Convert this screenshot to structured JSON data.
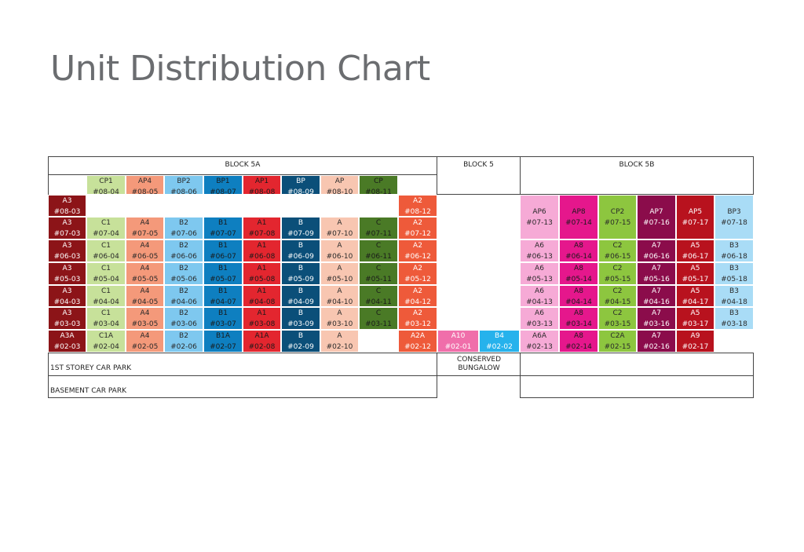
{
  "title": "Unit Distribution Chart",
  "blocks": {
    "a": "BLOCK 5A",
    "mid": "BLOCK 5",
    "b": "BLOCK 5B"
  },
  "labels": {
    "car1": "1ST STOREY CAR PARK",
    "car2": "BASEMENT CAR PARK",
    "bungalow": "CONSERVED BUNGALOW"
  },
  "colors": {
    "maroon": "#8c1418",
    "lgreen": "#c7e19a",
    "salmon": "#f4997a",
    "sky": "#7ec8ef",
    "blue": "#0e7fc0",
    "red": "#e3262f",
    "navy": "#0b4f79",
    "peach": "#f8c6b1",
    "dgreen": "#4a7a26",
    "orange": "#ee5a3a",
    "pink": "#f6aad6",
    "magenta": "#e5178c",
    "green": "#8dc63f",
    "plum": "#8b0c4b",
    "crimson": "#b8121e",
    "lblue": "#a9dcf6",
    "hotpink": "#f06eaa",
    "cyan": "#26b2ec"
  },
  "cells": [
    {
      "code": "CP1",
      "unit": "#08-04",
      "col": 1,
      "row": 0,
      "color": "lgreen"
    },
    {
      "code": "AP4",
      "unit": "#08-05",
      "col": 2,
      "row": 0,
      "color": "salmon"
    },
    {
      "code": "BP2",
      "unit": "#08-06",
      "col": 3,
      "row": 0,
      "color": "sky"
    },
    {
      "code": "BP1",
      "unit": "#08-07",
      "col": 4,
      "row": 0,
      "color": "blue"
    },
    {
      "code": "AP1",
      "unit": "#08-08",
      "col": 5,
      "row": 0,
      "color": "red"
    },
    {
      "code": "BP",
      "unit": "#08-09",
      "col": 6,
      "row": 0,
      "color": "navy"
    },
    {
      "code": "AP",
      "unit": "#08-10",
      "col": 7,
      "row": 0,
      "color": "peach"
    },
    {
      "code": "CP",
      "unit": "#08-11",
      "col": 8,
      "row": 0,
      "color": "dgreen"
    },
    {
      "code": "A3",
      "unit": "#08-03",
      "col": 0,
      "row": 1,
      "color": "maroon"
    },
    {
      "code": "A2",
      "unit": "#08-12",
      "col": 9,
      "row": 1,
      "color": "orange"
    },
    {
      "code": "A3",
      "unit": "#07-03",
      "col": 0,
      "row": 2,
      "color": "maroon"
    },
    {
      "code": "C1",
      "unit": "#07-04",
      "col": 1,
      "row": 2,
      "color": "lgreen"
    },
    {
      "code": "A4",
      "unit": "#07-05",
      "col": 2,
      "row": 2,
      "color": "salmon"
    },
    {
      "code": "B2",
      "unit": "#07-06",
      "col": 3,
      "row": 2,
      "color": "sky"
    },
    {
      "code": "B1",
      "unit": "#07-07",
      "col": 4,
      "row": 2,
      "color": "blue"
    },
    {
      "code": "A1",
      "unit": "#07-08",
      "col": 5,
      "row": 2,
      "color": "red"
    },
    {
      "code": "B",
      "unit": "#07-09",
      "col": 6,
      "row": 2,
      "color": "navy"
    },
    {
      "code": "A",
      "unit": "#07-10",
      "col": 7,
      "row": 2,
      "color": "peach"
    },
    {
      "code": "C",
      "unit": "#07-11",
      "col": 8,
      "row": 2,
      "color": "dgreen"
    },
    {
      "code": "A2",
      "unit": "#07-12",
      "col": 9,
      "row": 2,
      "color": "orange"
    },
    {
      "code": "A3",
      "unit": "#06-03",
      "col": 0,
      "row": 3,
      "color": "maroon"
    },
    {
      "code": "C1",
      "unit": "#06-04",
      "col": 1,
      "row": 3,
      "color": "lgreen"
    },
    {
      "code": "A4",
      "unit": "#06-05",
      "col": 2,
      "row": 3,
      "color": "salmon"
    },
    {
      "code": "B2",
      "unit": "#06-06",
      "col": 3,
      "row": 3,
      "color": "sky"
    },
    {
      "code": "B1",
      "unit": "#06-07",
      "col": 4,
      "row": 3,
      "color": "blue"
    },
    {
      "code": "A1",
      "unit": "#06-08",
      "col": 5,
      "row": 3,
      "color": "red"
    },
    {
      "code": "B",
      "unit": "#06-09",
      "col": 6,
      "row": 3,
      "color": "navy"
    },
    {
      "code": "A",
      "unit": "#06-10",
      "col": 7,
      "row": 3,
      "color": "peach"
    },
    {
      "code": "C",
      "unit": "#06-11",
      "col": 8,
      "row": 3,
      "color": "dgreen"
    },
    {
      "code": "A2",
      "unit": "#06-12",
      "col": 9,
      "row": 3,
      "color": "orange"
    },
    {
      "code": "A3",
      "unit": "#05-03",
      "col": 0,
      "row": 4,
      "color": "maroon"
    },
    {
      "code": "C1",
      "unit": "#05-04",
      "col": 1,
      "row": 4,
      "color": "lgreen"
    },
    {
      "code": "A4",
      "unit": "#05-05",
      "col": 2,
      "row": 4,
      "color": "salmon"
    },
    {
      "code": "B2",
      "unit": "#05-06",
      "col": 3,
      "row": 4,
      "color": "sky"
    },
    {
      "code": "B1",
      "unit": "#05-07",
      "col": 4,
      "row": 4,
      "color": "blue"
    },
    {
      "code": "A1",
      "unit": "#05-08",
      "col": 5,
      "row": 4,
      "color": "red"
    },
    {
      "code": "B",
      "unit": "#05-09",
      "col": 6,
      "row": 4,
      "color": "navy"
    },
    {
      "code": "A",
      "unit": "#05-10",
      "col": 7,
      "row": 4,
      "color": "peach"
    },
    {
      "code": "C",
      "unit": "#05-11",
      "col": 8,
      "row": 4,
      "color": "dgreen"
    },
    {
      "code": "A2",
      "unit": "#05-12",
      "col": 9,
      "row": 4,
      "color": "orange"
    },
    {
      "code": "A3",
      "unit": "#04-03",
      "col": 0,
      "row": 5,
      "color": "maroon"
    },
    {
      "code": "C1",
      "unit": "#04-04",
      "col": 1,
      "row": 5,
      "color": "lgreen"
    },
    {
      "code": "A4",
      "unit": "#04-05",
      "col": 2,
      "row": 5,
      "color": "salmon"
    },
    {
      "code": "B2",
      "unit": "#04-06",
      "col": 3,
      "row": 5,
      "color": "sky"
    },
    {
      "code": "B1",
      "unit": "#04-07",
      "col": 4,
      "row": 5,
      "color": "blue"
    },
    {
      "code": "A1",
      "unit": "#04-08",
      "col": 5,
      "row": 5,
      "color": "red"
    },
    {
      "code": "B",
      "unit": "#04-09",
      "col": 6,
      "row": 5,
      "color": "navy"
    },
    {
      "code": "A",
      "unit": "#04-10",
      "col": 7,
      "row": 5,
      "color": "peach"
    },
    {
      "code": "C",
      "unit": "#04-11",
      "col": 8,
      "row": 5,
      "color": "dgreen"
    },
    {
      "code": "A2",
      "unit": "#04-12",
      "col": 9,
      "row": 5,
      "color": "orange"
    },
    {
      "code": "A3",
      "unit": "#03-03",
      "col": 0,
      "row": 6,
      "color": "maroon"
    },
    {
      "code": "C1",
      "unit": "#03-04",
      "col": 1,
      "row": 6,
      "color": "lgreen"
    },
    {
      "code": "A4",
      "unit": "#03-05",
      "col": 2,
      "row": 6,
      "color": "salmon"
    },
    {
      "code": "B2",
      "unit": "#03-06",
      "col": 3,
      "row": 6,
      "color": "sky"
    },
    {
      "code": "B1",
      "unit": "#03-07",
      "col": 4,
      "row": 6,
      "color": "blue"
    },
    {
      "code": "A1",
      "unit": "#03-08",
      "col": 5,
      "row": 6,
      "color": "red"
    },
    {
      "code": "B",
      "unit": "#03-09",
      "col": 6,
      "row": 6,
      "color": "navy"
    },
    {
      "code": "A",
      "unit": "#03-10",
      "col": 7,
      "row": 6,
      "color": "peach"
    },
    {
      "code": "C",
      "unit": "#03-11",
      "col": 8,
      "row": 6,
      "color": "dgreen"
    },
    {
      "code": "A2",
      "unit": "#03-12",
      "col": 9,
      "row": 6,
      "color": "orange"
    },
    {
      "code": "A3A",
      "unit": "#02-03",
      "col": 0,
      "row": 7,
      "color": "maroon"
    },
    {
      "code": "C1A",
      "unit": "#02-04",
      "col": 1,
      "row": 7,
      "color": "lgreen"
    },
    {
      "code": "A4",
      "unit": "#02-05",
      "col": 2,
      "row": 7,
      "color": "salmon"
    },
    {
      "code": "B2",
      "unit": "#02-06",
      "col": 3,
      "row": 7,
      "color": "sky"
    },
    {
      "code": "B1A",
      "unit": "#02-07",
      "col": 4,
      "row": 7,
      "color": "blue"
    },
    {
      "code": "A1A",
      "unit": "#02-08",
      "col": 5,
      "row": 7,
      "color": "red"
    },
    {
      "code": "B",
      "unit": "#02-09",
      "col": 6,
      "row": 7,
      "color": "navy"
    },
    {
      "code": "A",
      "unit": "#02-10",
      "col": 7,
      "row": 7,
      "color": "peach"
    },
    {
      "code": "A2A",
      "unit": "#02-12",
      "col": 9,
      "row": 7,
      "color": "orange"
    },
    {
      "code": "A10",
      "unit": "#02-01",
      "col": 10,
      "row": 7,
      "color": "hotpink"
    },
    {
      "code": "B4",
      "unit": "#02-02",
      "col": 11,
      "row": 7,
      "color": "cyan"
    },
    {
      "code": "AP6",
      "unit": "#07-13",
      "col": 12,
      "row": 1,
      "color": "pink",
      "tall": true
    },
    {
      "code": "AP8",
      "unit": "#07-14",
      "col": 13,
      "row": 1,
      "color": "magenta",
      "tall": true
    },
    {
      "code": "CP2",
      "unit": "#07-15",
      "col": 14,
      "row": 1,
      "color": "green",
      "tall": true
    },
    {
      "code": "AP7",
      "unit": "#07-16",
      "col": 15,
      "row": 1,
      "color": "plum",
      "tall": true
    },
    {
      "code": "AP5",
      "unit": "#07-17",
      "col": 16,
      "row": 1,
      "color": "crimson",
      "tall": true
    },
    {
      "code": "BP3",
      "unit": "#07-18",
      "col": 17,
      "row": 1,
      "color": "lblue",
      "tall": true
    },
    {
      "code": "A6",
      "unit": "#06-13",
      "col": 12,
      "row": 3,
      "color": "pink"
    },
    {
      "code": "A8",
      "unit": "#06-14",
      "col": 13,
      "row": 3,
      "color": "magenta"
    },
    {
      "code": "C2",
      "unit": "#06-15",
      "col": 14,
      "row": 3,
      "color": "green"
    },
    {
      "code": "A7",
      "unit": "#06-16",
      "col": 15,
      "row": 3,
      "color": "plum"
    },
    {
      "code": "A5",
      "unit": "#06-17",
      "col": 16,
      "row": 3,
      "color": "crimson"
    },
    {
      "code": "B3",
      "unit": "#06-18",
      "col": 17,
      "row": 3,
      "color": "lblue"
    },
    {
      "code": "A6",
      "unit": "#05-13",
      "col": 12,
      "row": 4,
      "color": "pink"
    },
    {
      "code": "A8",
      "unit": "#05-14",
      "col": 13,
      "row": 4,
      "color": "magenta"
    },
    {
      "code": "C2",
      "unit": "#05-15",
      "col": 14,
      "row": 4,
      "color": "green"
    },
    {
      "code": "A7",
      "unit": "#05-16",
      "col": 15,
      "row": 4,
      "color": "plum"
    },
    {
      "code": "A5",
      "unit": "#05-17",
      "col": 16,
      "row": 4,
      "color": "crimson"
    },
    {
      "code": "B3",
      "unit": "#05-18",
      "col": 17,
      "row": 4,
      "color": "lblue"
    },
    {
      "code": "A6",
      "unit": "#04-13",
      "col": 12,
      "row": 5,
      "color": "pink"
    },
    {
      "code": "A8",
      "unit": "#04-14",
      "col": 13,
      "row": 5,
      "color": "magenta"
    },
    {
      "code": "C2",
      "unit": "#04-15",
      "col": 14,
      "row": 5,
      "color": "green"
    },
    {
      "code": "A7",
      "unit": "#04-16",
      "col": 15,
      "row": 5,
      "color": "plum"
    },
    {
      "code": "A5",
      "unit": "#04-17",
      "col": 16,
      "row": 5,
      "color": "crimson"
    },
    {
      "code": "B3",
      "unit": "#04-18",
      "col": 17,
      "row": 5,
      "color": "lblue"
    },
    {
      "code": "A6",
      "unit": "#03-13",
      "col": 12,
      "row": 6,
      "color": "pink"
    },
    {
      "code": "A8",
      "unit": "#03-14",
      "col": 13,
      "row": 6,
      "color": "magenta"
    },
    {
      "code": "C2",
      "unit": "#03-15",
      "col": 14,
      "row": 6,
      "color": "green"
    },
    {
      "code": "A7",
      "unit": "#03-16",
      "col": 15,
      "row": 6,
      "color": "plum"
    },
    {
      "code": "A5",
      "unit": "#03-17",
      "col": 16,
      "row": 6,
      "color": "crimson"
    },
    {
      "code": "B3",
      "unit": "#03-18",
      "col": 17,
      "row": 6,
      "color": "lblue"
    },
    {
      "code": "A6A",
      "unit": "#02-13",
      "col": 12,
      "row": 7,
      "color": "pink"
    },
    {
      "code": "A8",
      "unit": "#02-14",
      "col": 13,
      "row": 7,
      "color": "magenta"
    },
    {
      "code": "C2A",
      "unit": "#02-15",
      "col": 14,
      "row": 7,
      "color": "green"
    },
    {
      "code": "A7",
      "unit": "#02-16",
      "col": 15,
      "row": 7,
      "color": "plum"
    },
    {
      "code": "A9",
      "unit": "#02-17",
      "col": 16,
      "row": 7,
      "color": "crimson"
    }
  ]
}
